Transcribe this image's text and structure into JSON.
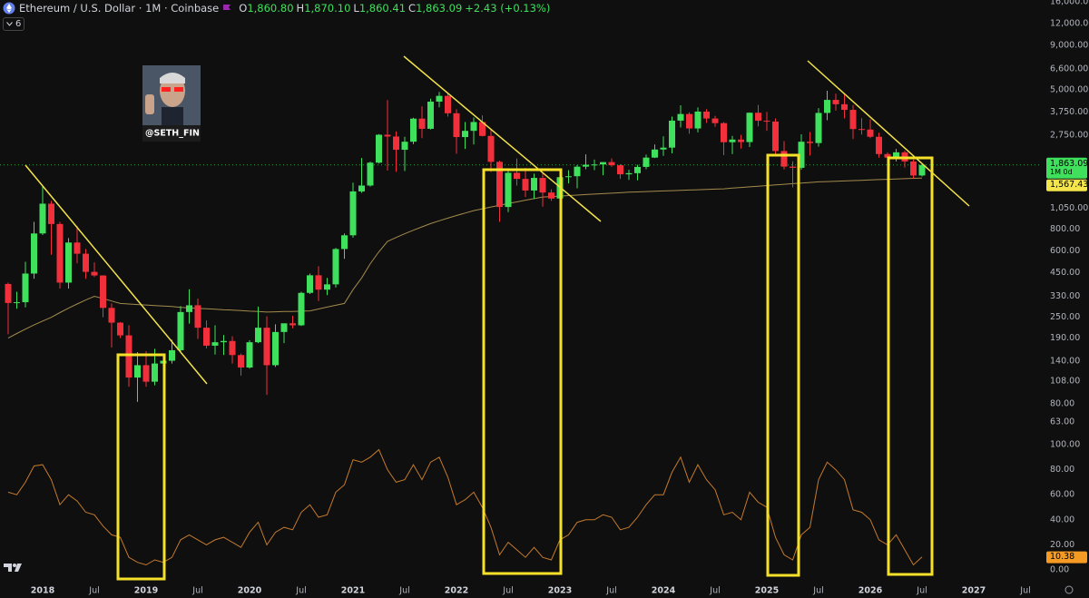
{
  "chart_data": {
    "type": "candlestick",
    "title": "Ethereum / U.S. Dollar · 1M · Coinbase",
    "header": {
      "o_letter": "O",
      "o": "1,860.80",
      "h_letter": "H",
      "h": "1,870.10",
      "l_letter": "L",
      "l": "1,860.41",
      "c_letter": "C",
      "c": "1,863.09",
      "change": "+2.43 (+0.13%)"
    },
    "indicator_count": "6",
    "watermark": "@SETH_FIN",
    "categories": [
      null,
      null,
      null,
      null,
      "2018",
      null,
      null,
      null,
      null,
      null,
      "Jul",
      null,
      null,
      null,
      null,
      null,
      "2019",
      null,
      null,
      null,
      null,
      null,
      "Jul",
      null,
      null,
      null,
      null,
      null,
      "2020",
      null,
      null,
      null,
      null,
      null,
      "Jul",
      null,
      null,
      null,
      null,
      null,
      "2021",
      null,
      null,
      null,
      null,
      null,
      "Jul",
      null,
      null,
      null,
      null,
      null,
      "2022",
      null,
      null,
      null,
      null,
      null,
      "Jul",
      null,
      null,
      null,
      null,
      null,
      "2023",
      null,
      null,
      null,
      null,
      null,
      "Jul",
      null,
      null,
      null,
      null,
      null,
      "2024",
      null,
      null,
      null,
      null,
      null,
      "Jul",
      null,
      null,
      null,
      null,
      null,
      "2025",
      null,
      null,
      null,
      null,
      null,
      "Jul",
      null,
      null,
      null,
      null,
      null,
      "2026",
      null,
      null,
      null,
      null,
      null,
      "Jul",
      null,
      null,
      null,
      null,
      null,
      "2027",
      null,
      null,
      null,
      null,
      null,
      "Jul",
      null
    ],
    "open": [
      388,
      302,
      305,
      445,
      755,
      1118,
      855,
      395,
      670,
      578,
      455,
      434,
      283,
      233,
      197,
      113,
      133,
      107,
      136,
      141,
      162,
      268,
      293,
      218,
      172,
      180,
      183,
      152,
      129,
      180,
      218,
      133,
      206,
      231,
      225,
      345,
      435,
      360,
      386,
      615,
      737,
      1314,
      1420,
      1919,
      2773,
      2710,
      2275,
      2530,
      3430,
      3000,
      4290,
      4630,
      3680,
      2690,
      2920,
      3280,
      2730,
      1940,
      1070,
      1680,
      1550,
      1330,
      1570,
      1295,
      1196,
      1585,
      1605,
      1821,
      1868,
      1874,
      1934,
      1856,
      1646,
      1671,
      1815,
      2052,
      2283,
      2340,
      3340,
      3645,
      3013,
      3763,
      3435,
      3232,
      2513,
      2603,
      2518,
      3706,
      3335,
      3300,
      2237,
      1822,
      1794,
      2530,
      2486,
      3698,
      4390,
      4145,
      3850,
      2990,
      2970,
      2700,
      2150,
      2050,
      2200,
      1950,
      1621,
      null,
      null,
      null,
      null,
      null,
      null,
      null,
      null,
      null,
      null,
      null,
      null,
      null
    ],
    "high": [
      395,
      350,
      520,
      880,
      1420,
      1160,
      880,
      710,
      835,
      615,
      515,
      435,
      300,
      235,
      225,
      158,
      160,
      165,
      146,
      186,
      290,
      362,
      320,
      240,
      225,
      198,
      195,
      155,
      185,
      288,
      253,
      228,
      227,
      255,
      350,
      445,
      490,
      420,
      625,
      755,
      1475,
      2040,
      1945,
      2800,
      4380,
      2900,
      2700,
      3470,
      4030,
      4460,
      4870,
      4780,
      3880,
      3280,
      3480,
      3580,
      2960,
      1970,
      1780,
      2030,
      1790,
      1660,
      1680,
      1350,
      1680,
      1740,
      1860,
      2140,
      2000,
      1935,
      2030,
      1880,
      1750,
      1865,
      2135,
      2440,
      2715,
      3520,
      4090,
      3730,
      3975,
      3890,
      3560,
      3280,
      2730,
      2770,
      3720,
      4110,
      3745,
      3440,
      2550,
      1955,
      2790,
      2880,
      3940,
      4955,
      4770,
      4755,
      4100,
      3450,
      3400,
      2850,
      2200,
      2300,
      2250,
      2000,
      1880,
      null,
      null,
      null,
      null,
      null,
      null,
      null,
      null,
      null,
      null,
      null,
      null,
      null
    ],
    "low": [
      200,
      280,
      285,
      415,
      740,
      570,
      365,
      365,
      510,
      415,
      425,
      250,
      168,
      190,
      100,
      82,
      100,
      102,
      125,
      136,
      158,
      230,
      188,
      166,
      153,
      152,
      136,
      116,
      127,
      178,
      90,
      130,
      178,
      216,
      223,
      340,
      310,
      335,
      370,
      540,
      715,
      1290,
      1400,
      1900,
      1730,
      1700,
      1718,
      2450,
      2650,
      2970,
      3980,
      3520,
      2160,
      2300,
      2440,
      2710,
      1700,
      880,
      1000,
      1420,
      1220,
      1190,
      1075,
      1160,
      1190,
      1460,
      1370,
      1760,
      1740,
      1625,
      1820,
      1550,
      1530,
      1520,
      1760,
      2040,
      2100,
      2170,
      3050,
      2810,
      2860,
      3240,
      3080,
      2120,
      2150,
      2310,
      2360,
      3100,
      2920,
      2120,
      1755,
      1385,
      1750,
      2110,
      2370,
      3360,
      3810,
      3440,
      2620,
      2780,
      2650,
      2050,
      1750,
      1950,
      1800,
      1550,
      1600,
      null,
      null,
      null,
      null,
      null,
      null,
      null,
      null,
      null,
      null,
      null,
      null,
      null
    ],
    "close": [
      302,
      305,
      445,
      755,
      1118,
      855,
      395,
      670,
      578,
      455,
      434,
      283,
      233,
      197,
      113,
      133,
      107,
      136,
      141,
      162,
      268,
      293,
      218,
      172,
      180,
      183,
      152,
      129,
      180,
      218,
      133,
      206,
      231,
      225,
      345,
      435,
      360,
      386,
      615,
      737,
      1314,
      1420,
      1919,
      2773,
      2710,
      2275,
      2530,
      3430,
      3000,
      4290,
      4630,
      3680,
      2690,
      2920,
      3280,
      2730,
      1940,
      1070,
      1680,
      1550,
      1330,
      1570,
      1295,
      1196,
      1585,
      1605,
      1821,
      1868,
      1874,
      1934,
      1856,
      1646,
      1671,
      1815,
      2052,
      2283,
      2340,
      3340,
      3645,
      3013,
      3763,
      3435,
      3232,
      2513,
      2603,
      2518,
      3706,
      3335,
      3300,
      2237,
      1822,
      1794,
      2530,
      2486,
      3698,
      4390,
      4145,
      3850,
      2990,
      2970,
      2700,
      2150,
      2050,
      2200,
      1950,
      1621,
      1863.09,
      null,
      null,
      null,
      null,
      null,
      null,
      null,
      null,
      null,
      null,
      null,
      null,
      null
    ],
    "up_color": "#3fe05c",
    "down_color": "#f2303c",
    "log_scale": true,
    "grid": false,
    "ylim": [
      52.6,
      16380
    ],
    "yticks": [
      {
        "value": 16000,
        "label": "16,000.00"
      },
      {
        "value": 12000,
        "label": "12,000.00"
      },
      {
        "value": 9000,
        "label": "9,000.00"
      },
      {
        "value": 6600,
        "label": "6,600.00"
      },
      {
        "value": 5000,
        "label": "5,000.00"
      },
      {
        "value": 3750,
        "label": "3,750.00"
      },
      {
        "value": 2750,
        "label": "2,750.00"
      },
      {
        "value": 1050,
        "label": "1,050.00"
      },
      {
        "value": 800,
        "label": "800.00"
      },
      {
        "value": 600,
        "label": "600.00"
      },
      {
        "value": 450,
        "label": "450.00"
      },
      {
        "value": 330,
        "label": "330.00"
      },
      {
        "value": 250,
        "label": "250.00"
      },
      {
        "value": 190,
        "label": "190.00"
      },
      {
        "value": 140,
        "label": "140.00"
      },
      {
        "value": 108,
        "label": "108.00"
      },
      {
        "value": 80,
        "label": "80.00"
      },
      {
        "value": 63,
        "label": "63.00"
      }
    ],
    "last_price": {
      "value": 1863.09,
      "label": "1,863.09"
    },
    "countdown": "1M 0d",
    "last_price_color": "#3fe05c",
    "moving_average": {
      "color": "#a38b4c",
      "values": [
        190,
        202,
        214,
        226,
        238,
        250,
        266,
        282,
        298,
        314,
        330,
        320,
        310,
        300,
        298,
        296,
        294,
        292,
        290,
        288,
        285,
        283,
        281,
        280,
        278,
        276,
        275,
        273,
        271,
        270,
        268,
        269,
        270,
        270,
        271,
        272,
        279,
        286,
        293,
        300,
        360,
        420,
        507,
        593,
        680,
        716,
        752,
        788,
        824,
        860,
        892,
        924,
        956,
        988,
        1020,
        1045,
        1070,
        1095,
        1120,
        1145,
        1170,
        1195,
        1220,
        1228,
        1236,
        1244,
        1252,
        1260,
        1268,
        1276,
        1284,
        1292,
        1300,
        1305,
        1311,
        1316,
        1322,
        1327,
        1333,
        1338,
        1344,
        1349,
        1355,
        1360,
        1372,
        1384,
        1396,
        1408,
        1420,
        1432,
        1444,
        1456,
        1467,
        1479,
        1490,
        1496,
        1503,
        1509,
        1516,
        1522,
        1529,
        1535,
        1541,
        1548,
        1554,
        1561,
        1567.43,
        null,
        null,
        null,
        null,
        null,
        null,
        null,
        null,
        null,
        null,
        null,
        null,
        null
      ],
      "last": {
        "value": 1567.43,
        "label": "1,567.43"
      },
      "tag_color": "#f4e64a"
    },
    "rsi": {
      "color": "#c47a2c",
      "tag_color": "#f59a23",
      "ylim": [
        0,
        100
      ],
      "yticks": [
        {
          "value": 100,
          "label": "100.00"
        },
        {
          "value": 80,
          "label": "80.00"
        },
        {
          "value": 60,
          "label": "60.00"
        },
        {
          "value": 40,
          "label": "40.00"
        },
        {
          "value": 20,
          "label": "20.00"
        },
        {
          "value": 0,
          "label": "0.00"
        }
      ],
      "values": [
        62,
        60,
        70,
        83,
        84,
        72,
        52,
        60,
        55,
        46,
        44,
        35,
        28,
        26,
        10,
        6,
        4,
        8,
        6,
        10,
        24,
        28,
        24,
        20,
        24,
        26,
        22,
        18,
        30,
        38,
        20,
        30,
        34,
        32,
        46,
        52,
        42,
        44,
        62,
        68,
        88,
        86,
        90,
        96,
        80,
        70,
        72,
        84,
        72,
        86,
        90,
        74,
        52,
        56,
        62,
        50,
        34,
        12,
        22,
        16,
        10,
        18,
        10,
        8,
        24,
        28,
        38,
        40,
        40,
        44,
        42,
        32,
        34,
        42,
        52,
        60,
        60,
        78,
        90,
        70,
        84,
        72,
        64,
        44,
        46,
        40,
        62,
        54,
        50,
        26,
        12,
        8,
        28,
        34,
        72,
        86,
        80,
        72,
        48,
        46,
        40,
        24,
        20,
        28,
        16,
        4,
        10.38,
        null,
        null,
        null,
        null,
        null,
        null,
        null,
        null,
        null,
        null,
        null,
        null,
        null
      ],
      "last": {
        "value": 10.38,
        "label": "10.38"
      }
    }
  }
}
